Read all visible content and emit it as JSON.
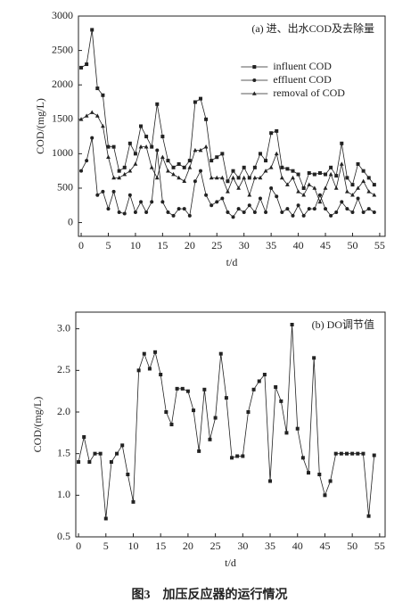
{
  "caption": "图3　加压反应器的运行情况",
  "chart_data": [
    {
      "type": "line",
      "title": "(a) 进、出水COD及去除量",
      "xlabel": "t/d",
      "ylabel": "COD/(mg/L)",
      "xlim": [
        -0.5,
        56
      ],
      "ylim": [
        -200,
        3000
      ],
      "xticks": [
        0,
        5,
        10,
        15,
        20,
        25,
        30,
        35,
        40,
        45,
        50,
        55
      ],
      "yticks": [
        0,
        500,
        1000,
        1500,
        2000,
        2500,
        3000
      ],
      "legend": "upper right",
      "x": [
        0,
        1,
        2,
        3,
        4,
        5,
        6,
        7,
        8,
        9,
        10,
        11,
        12,
        13,
        14,
        15,
        16,
        17,
        18,
        19,
        20,
        21,
        22,
        23,
        24,
        25,
        26,
        27,
        28,
        29,
        30,
        31,
        32,
        33,
        34,
        35,
        36,
        37,
        38,
        39,
        40,
        41,
        42,
        43,
        44,
        45,
        46,
        47,
        48,
        49,
        50,
        51,
        52,
        53,
        54
      ],
      "series": [
        {
          "name": "influent COD",
          "color": "#222222",
          "marker": "square",
          "values": [
            2250,
            2300,
            2800,
            1950,
            1850,
            1100,
            1100,
            750,
            800,
            1150,
            1000,
            1400,
            1250,
            1100,
            1720,
            1250,
            900,
            800,
            850,
            800,
            900,
            1750,
            1800,
            1500,
            900,
            950,
            1000,
            600,
            750,
            650,
            800,
            650,
            800,
            1000,
            900,
            1300,
            1330,
            800,
            780,
            750,
            700,
            500,
            720,
            700,
            720,
            700,
            800,
            680,
            1150,
            650,
            550,
            850,
            750,
            650,
            550
          ]
        },
        {
          "name": "effluent COD",
          "color": "#222222",
          "marker": "circle",
          "values": [
            750,
            900,
            1230,
            400,
            450,
            200,
            450,
            150,
            130,
            400,
            150,
            300,
            150,
            300,
            1050,
            300,
            150,
            100,
            200,
            200,
            100,
            600,
            750,
            400,
            250,
            300,
            350,
            150,
            80,
            200,
            150,
            250,
            150,
            350,
            150,
            500,
            380,
            150,
            200,
            100,
            250,
            100,
            200,
            200,
            400,
            200,
            100,
            150,
            300,
            200,
            150,
            350,
            150,
            200,
            150
          ]
        },
        {
          "name": "removal of COD",
          "color": "#222222",
          "marker": "triangle",
          "values": [
            1500,
            1550,
            1600,
            1550,
            1400,
            950,
            650,
            650,
            700,
            750,
            850,
            1100,
            1100,
            800,
            650,
            950,
            750,
            700,
            650,
            600,
            800,
            1050,
            1050,
            1100,
            650,
            650,
            650,
            450,
            650,
            500,
            650,
            400,
            650,
            650,
            750,
            800,
            1000,
            650,
            550,
            650,
            450,
            400,
            550,
            500,
            300,
            500,
            700,
            500,
            850,
            450,
            400,
            500,
            600,
            450,
            400
          ]
        }
      ]
    },
    {
      "type": "line",
      "title": "(b) DO调节值",
      "xlabel": "t/d",
      "ylabel": "COD/(mg/L)",
      "xlim": [
        -0.5,
        56
      ],
      "ylim": [
        0.5,
        3.2
      ],
      "xticks": [
        0,
        5,
        10,
        15,
        20,
        25,
        30,
        35,
        40,
        45,
        50,
        55
      ],
      "yticks": [
        0.5,
        {
          "value": 1,
          "label": "1.0"
        },
        1.5,
        {
          "value": 2,
          "label": "2.0"
        },
        2.5,
        {
          "value": 3,
          "label": "3.0"
        }
      ],
      "x": [
        0,
        1,
        2,
        3,
        4,
        5,
        6,
        7,
        8,
        9,
        10,
        11,
        12,
        13,
        14,
        15,
        16,
        17,
        18,
        19,
        20,
        21,
        22,
        23,
        24,
        25,
        26,
        27,
        28,
        29,
        30,
        31,
        32,
        33,
        34,
        35,
        36,
        37,
        38,
        39,
        40,
        41,
        42,
        43,
        44,
        45,
        46,
        47,
        48,
        49,
        50,
        51,
        52,
        53,
        54
      ],
      "series": [
        {
          "color": "#222222",
          "marker": "square",
          "values": [
            1.4,
            1.7,
            1.4,
            1.5,
            1.5,
            0.72,
            1.4,
            1.5,
            1.6,
            1.25,
            0.92,
            2.5,
            2.7,
            2.52,
            2.72,
            2.45,
            2.0,
            1.85,
            2.28,
            2.28,
            2.25,
            2.02,
            1.53,
            2.27,
            1.67,
            1.93,
            2.7,
            2.17,
            1.45,
            1.47,
            1.47,
            2.0,
            2.27,
            2.37,
            2.45,
            1.17,
            2.3,
            2.13,
            1.75,
            3.05,
            1.8,
            1.45,
            1.27,
            2.65,
            1.25,
            1.0,
            1.17,
            1.5,
            1.5,
            1.5,
            1.5,
            1.5,
            1.5,
            0.75,
            1.48
          ]
        }
      ]
    }
  ]
}
